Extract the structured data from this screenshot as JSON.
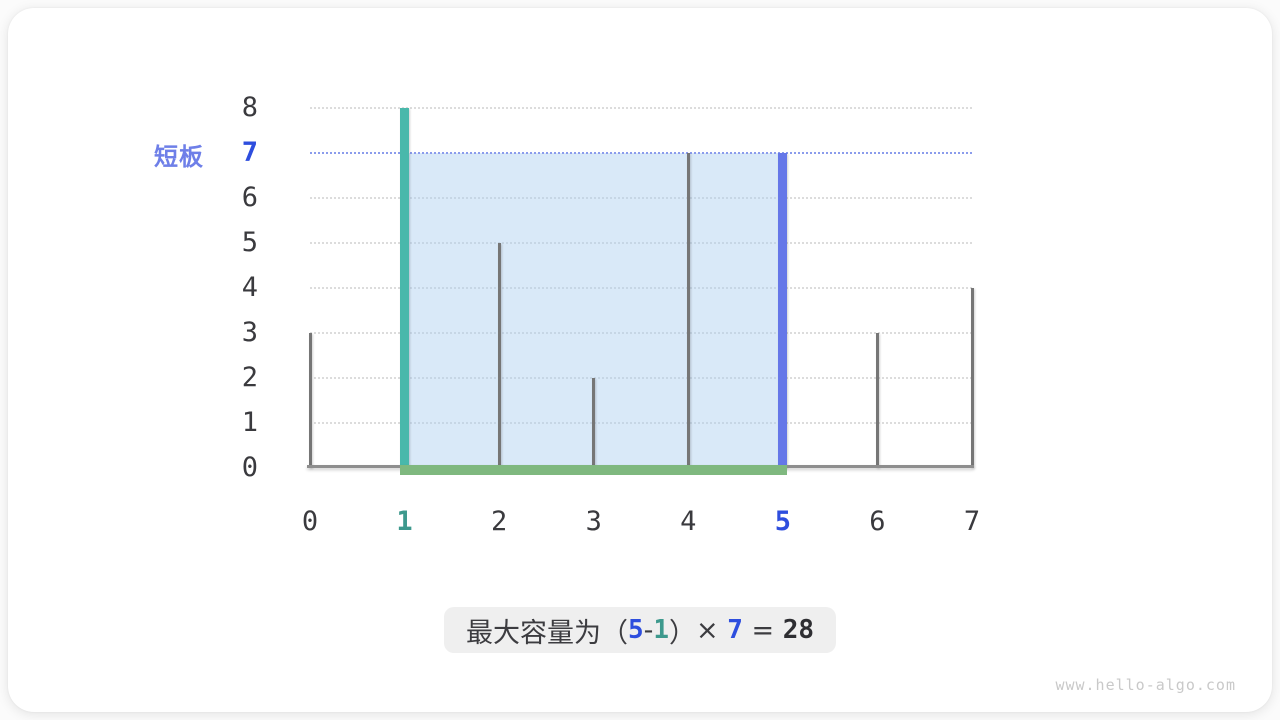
{
  "chart_data": {
    "type": "bar",
    "title": "",
    "x": [
      0,
      1,
      2,
      3,
      4,
      5,
      6,
      7
    ],
    "heights": [
      3,
      8,
      5,
      2,
      7,
      7,
      3,
      4
    ],
    "x_ticks": [
      0,
      1,
      2,
      3,
      4,
      5,
      6,
      7
    ],
    "y_ticks": [
      0,
      1,
      2,
      3,
      4,
      5,
      6,
      7,
      8
    ],
    "xlim": [
      0,
      7
    ],
    "ylim": [
      0,
      8
    ],
    "grid": "dotted-horizontal",
    "left_pointer": {
      "index": 1,
      "height": 8
    },
    "right_pointer": {
      "index": 5,
      "height": 7
    },
    "water_level": 7,
    "capacity": 28
  },
  "labels": {
    "short_board": "短板",
    "short_board_value": "7"
  },
  "caption": {
    "segments": [
      {
        "text": "最大容量为（",
        "style": "plain"
      },
      {
        "text": "5",
        "style": "blue"
      },
      {
        "text": "-",
        "style": "plain"
      },
      {
        "text": "1",
        "style": "teal"
      },
      {
        "text": "）",
        "style": "plain"
      },
      {
        "text": "× ",
        "style": "plain"
      },
      {
        "text": "7",
        "style": "blue"
      },
      {
        "text": " = ",
        "style": "plain"
      },
      {
        "text": "28",
        "style": "bold"
      }
    ]
  },
  "watermark": "www.hello-algo.com",
  "colors": {
    "teal": "#49b8ab",
    "teal-text": "#3d998d",
    "blue-bar": "#6577e8",
    "blue-text": "#2e4ede",
    "periwinkle": "#6e7fe8",
    "green": "#7fb87f",
    "waterfill": "rgba(171,206,239,0.45)",
    "waterline": "#8b9cec",
    "grid": "#dcdcdc",
    "bar-gray": "#767676",
    "axis-line": "#8e8e8e",
    "ink": "#3a3a3e",
    "caption-bg": "#efefef"
  }
}
